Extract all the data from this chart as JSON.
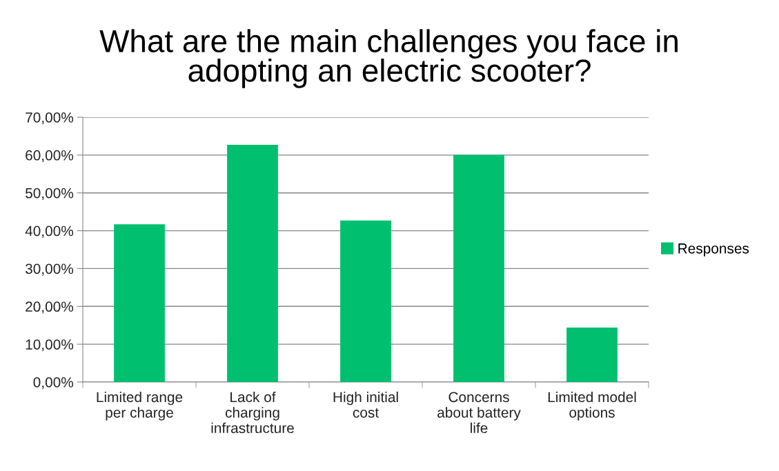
{
  "chart_data": {
    "type": "bar",
    "title": "What are the main challenges you face in\nadopting an electric scooter?",
    "categories": [
      "Limited range\nper charge",
      "Lack of\ncharging\ninfrastructure",
      "High initial\ncost",
      "Concerns\nabout battery\nlife",
      "Limited model\noptions"
    ],
    "series": [
      {
        "name": "Responses",
        "color": "#00bf6f",
        "values": [
          41.7,
          62.7,
          42.7,
          60.0,
          14.4
        ]
      }
    ],
    "ylim": [
      0,
      70
    ],
    "yticks": [
      {
        "value": 0,
        "label": "0,00%"
      },
      {
        "value": 10,
        "label": "10,00%"
      },
      {
        "value": 20,
        "label": "20,00%"
      },
      {
        "value": 30,
        "label": "30,00%"
      },
      {
        "value": 40,
        "label": "40,00%"
      },
      {
        "value": 50,
        "label": "50,00%"
      },
      {
        "value": 60,
        "label": "60,00%"
      },
      {
        "value": 70,
        "label": "70,00%"
      }
    ],
    "grid": "y",
    "legend": "right"
  }
}
